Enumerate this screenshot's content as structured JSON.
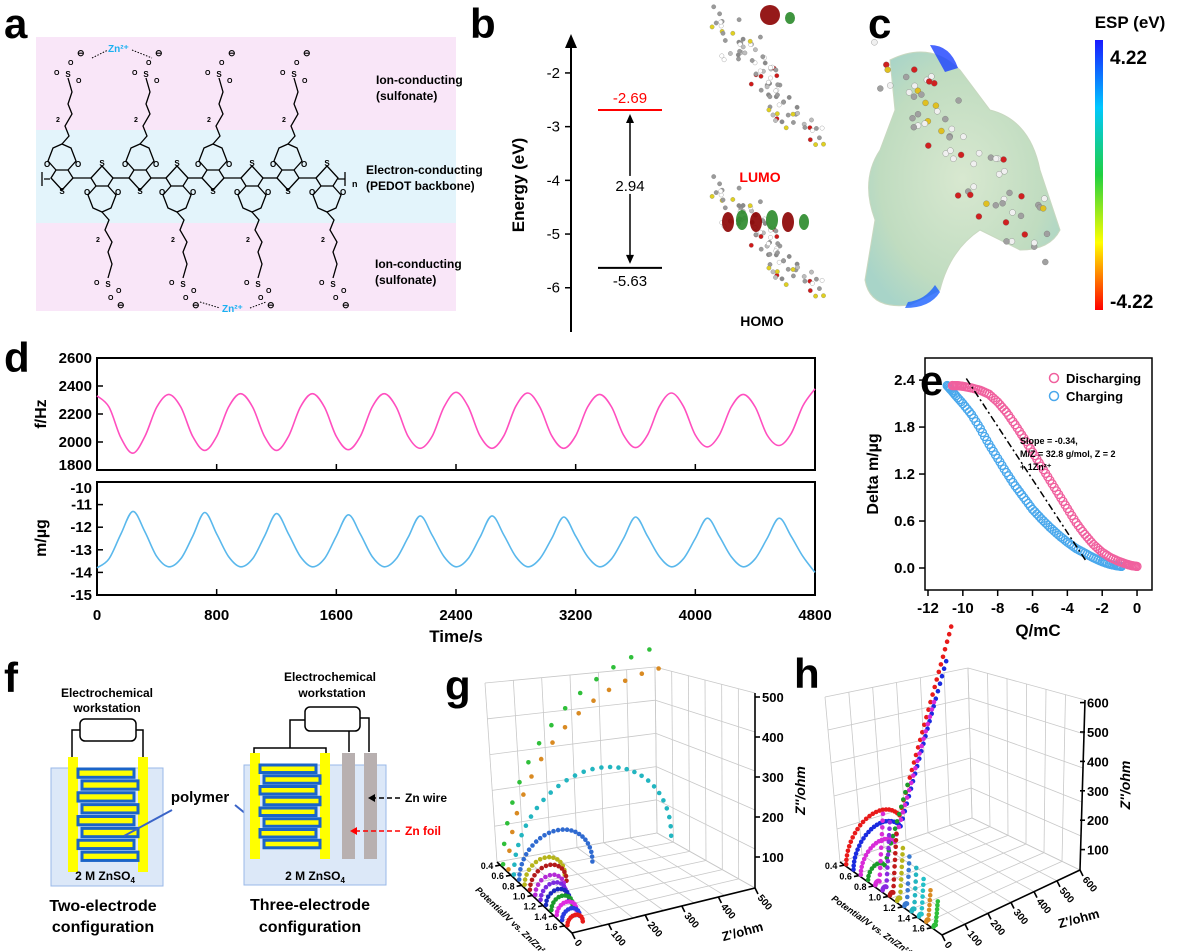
{
  "panel_labels": {
    "a": "a",
    "b": "b",
    "c": "c",
    "d": "d",
    "e": "e",
    "f": "f",
    "g": "g",
    "h": "h"
  },
  "panel_a": {
    "top_label_1": "Ion-conducting",
    "top_label_2": "(sulfonate)",
    "mid_label_1": "Electron-conducting",
    "mid_label_2": "(PEDOT backbone)",
    "bottom_label_1": "Ion-conducting",
    "bottom_label_2": "(sulfonate)",
    "zn_ion": "Zn²⁺",
    "repeat_subscript": "n",
    "chain_subscript": "2",
    "atom_S": "S",
    "atom_O": "O",
    "charge": "⊖",
    "colors": {
      "ion_band": "#f9e6f8",
      "electron_band": "#e3f4fb",
      "zn": "#1ab0f0"
    }
  },
  "panel_b": {
    "y_axis_label": "Energy (eV)",
    "ticks": [
      "-2",
      "-3",
      "-4",
      "-5",
      "-6"
    ],
    "tick_values": [
      -2,
      -3,
      -4,
      -5,
      -6
    ],
    "lumo_value": "-2.69",
    "homo_value": "-5.63",
    "gap_value": "2.94",
    "lumo_label": "LUMO",
    "homo_label": "HOMO",
    "lumo_energy": -2.69,
    "homo_energy": -5.63,
    "colors": {
      "lumo": "#ff0000",
      "homo": "#000000"
    }
  },
  "panel_c": {
    "colorbar_title": "ESP (eV)",
    "max_label": "4.22",
    "min_label": "-4.22"
  },
  "chart_data": [
    {
      "panel": "d-top",
      "type": "line",
      "ylabel": "f/Hz",
      "xlabel": "Time/s",
      "xlim": [
        0,
        4800
      ],
      "ylim": [
        1800,
        2600
      ],
      "x_ticks": [
        "0",
        "800",
        "1600",
        "2400",
        "3200",
        "4000",
        "4800"
      ],
      "y_ticks": [
        "1800",
        "2000",
        "2200",
        "2400",
        "2600"
      ],
      "color": "#ff4fbf",
      "x": [
        0,
        80,
        160,
        240,
        320,
        400,
        480,
        560,
        640,
        720,
        800,
        880,
        960,
        1040,
        1120,
        1200,
        1280,
        1360,
        1440,
        1520,
        1600,
        1680,
        1760,
        1840,
        1920,
        2000,
        2080,
        2160,
        2240,
        2320,
        2400,
        2480,
        2560,
        2640,
        2720,
        2800,
        2880,
        2960,
        3040,
        3120,
        3200,
        3280,
        3360,
        3440,
        3520,
        3600,
        3680,
        3760,
        3840,
        3920,
        4000,
        4080,
        4160,
        4240,
        4320,
        4400,
        4480,
        4560,
        4640,
        4720,
        4800
      ],
      "y": [
        2330,
        2250,
        2030,
        1920,
        2040,
        2250,
        2340,
        2250,
        2040,
        1940,
        2040,
        2250,
        2345,
        2250,
        2040,
        1940,
        2040,
        2250,
        2345,
        2250,
        2040,
        1945,
        2040,
        2250,
        2345,
        2250,
        2040,
        1955,
        2040,
        2250,
        2355,
        2255,
        2045,
        1955,
        2045,
        2255,
        2350,
        2250,
        2045,
        1955,
        2045,
        2250,
        2340,
        2250,
        2050,
        1960,
        2050,
        2255,
        2350,
        2255,
        2050,
        1965,
        2050,
        2250,
        2340,
        2250,
        2050,
        1975,
        2060,
        2260,
        2380
      ]
    },
    {
      "panel": "d-bottom",
      "type": "line",
      "ylabel": "m/µg",
      "xlabel": "Time/s",
      "xlim": [
        0,
        4800
      ],
      "ylim": [
        -15,
        -10
      ],
      "x_ticks": [
        "0",
        "800",
        "1600",
        "2400",
        "3200",
        "4000",
        "4800"
      ],
      "y_ticks": [
        "-15",
        "-14",
        "-13",
        "-12",
        "-11",
        "-10"
      ],
      "color": "#5ab8ec",
      "x": [
        0,
        80,
        160,
        240,
        320,
        400,
        480,
        560,
        640,
        720,
        800,
        880,
        960,
        1040,
        1120,
        1200,
        1280,
        1360,
        1440,
        1520,
        1600,
        1680,
        1760,
        1840,
        1920,
        2000,
        2080,
        2160,
        2240,
        2320,
        2400,
        2480,
        2560,
        2640,
        2720,
        2800,
        2880,
        2960,
        3040,
        3120,
        3200,
        3280,
        3360,
        3440,
        3520,
        3600,
        3680,
        3760,
        3840,
        3920,
        4000,
        4080,
        4160,
        4240,
        4320,
        4400,
        4480,
        4560,
        4640,
        4720,
        4800
      ],
      "y": [
        -13.8,
        -13.4,
        -12.3,
        -11.3,
        -12.2,
        -13.3,
        -13.75,
        -13.4,
        -12.4,
        -11.35,
        -12.3,
        -13.3,
        -13.75,
        -13.4,
        -12.4,
        -11.4,
        -12.3,
        -13.3,
        -13.75,
        -13.4,
        -12.4,
        -11.45,
        -12.3,
        -13.3,
        -13.75,
        -13.4,
        -12.45,
        -11.5,
        -12.35,
        -13.3,
        -13.75,
        -13.4,
        -12.45,
        -11.5,
        -12.35,
        -13.3,
        -13.75,
        -13.4,
        -12.5,
        -11.55,
        -12.4,
        -13.3,
        -13.75,
        -13.4,
        -12.5,
        -11.55,
        -12.4,
        -13.3,
        -13.75,
        -13.4,
        -12.5,
        -11.6,
        -12.4,
        -13.3,
        -13.75,
        -13.4,
        -12.5,
        -11.6,
        -12.4,
        -13.3,
        -14.0
      ]
    },
    {
      "panel": "e",
      "type": "scatter",
      "xlabel": "Q/mC",
      "ylabel": "Delta m/µg",
      "xlim": [
        -12.2,
        0.9
      ],
      "ylim": [
        -0.3,
        2.7
      ],
      "x_ticks": [
        "-12",
        "-10",
        "-8",
        "-6",
        "-4",
        "-2",
        "0"
      ],
      "x_tick_values": [
        -12,
        -10,
        -8,
        -6,
        -4,
        -2,
        0
      ],
      "y_ticks": [
        "0.0",
        "0.6",
        "1.2",
        "1.8",
        "2.4"
      ],
      "y_tick_values": [
        0,
        0.6,
        1.2,
        1.8,
        2.4
      ],
      "legend_position": "top-right",
      "series": [
        {
          "name": "Discharging",
          "color": "#f0609e",
          "x": [
            0,
            -0.3,
            -0.6,
            -1,
            -1.5,
            -2,
            -2.5,
            -3,
            -3.5,
            -4,
            -4.5,
            -5,
            -5.5,
            -6,
            -6.5,
            -7,
            -7.5,
            -8,
            -8.5,
            -9,
            -9.5,
            -10,
            -10.3,
            -10.6
          ],
          "y": [
            0.02,
            0.03,
            0.05,
            0.08,
            0.13,
            0.2,
            0.3,
            0.43,
            0.58,
            0.76,
            0.94,
            1.12,
            1.3,
            1.48,
            1.66,
            1.83,
            1.99,
            2.12,
            2.22,
            2.27,
            2.3,
            2.32,
            2.33,
            2.33
          ]
        },
        {
          "name": "Charging",
          "color": "#4aa8ec",
          "x": [
            -0.9,
            -1.2,
            -1.6,
            -2,
            -2.5,
            -3,
            -3.5,
            -4,
            -4.5,
            -5,
            -5.5,
            -6,
            -6.5,
            -7,
            -7.5,
            -8,
            -8.5,
            -9,
            -9.5,
            -10,
            -10.4,
            -10.7,
            -10.9
          ],
          "y": [
            0.02,
            0.03,
            0.05,
            0.08,
            0.13,
            0.19,
            0.25,
            0.33,
            0.42,
            0.52,
            0.63,
            0.75,
            0.9,
            1.05,
            1.22,
            1.4,
            1.58,
            1.78,
            1.96,
            2.1,
            2.2,
            2.28,
            2.33
          ]
        }
      ],
      "fit_line": {
        "x": [
          -9.8,
          -2.9
        ],
        "y": [
          2.42,
          0.08
        ],
        "slope": -0.34,
        "style": "dash-dot"
      },
      "annotation": [
        "Slope = -0.34,",
        "M/Z = 32.8 g/mol, Z = 2",
        "+ 1Zn²⁺"
      ]
    },
    {
      "panel": "g",
      "type": "scatter3d",
      "x_label": "Z'/ohm",
      "y_label": "Potential/V vs. Zn/Zn²⁺",
      "z_label": "Z''/ohm",
      "x_ticks": [
        "0",
        "100",
        "200",
        "300",
        "400",
        "500"
      ],
      "potential_ticks": [
        "0.4",
        "0.6",
        "0.8",
        "1.0",
        "1.2",
        "1.4",
        "1.6"
      ],
      "z_ticks": [
        "100",
        "200",
        "300",
        "400",
        "500"
      ],
      "xlim": [
        0,
        500
      ],
      "zlim": [
        0,
        500
      ],
      "series": [
        {
          "potential": 0.4,
          "color": "#2fbf3a",
          "semicircle_diameter_ohm": 900
        },
        {
          "potential": 0.5,
          "color": "#d98a22",
          "semicircle_diameter_ohm": 820
        },
        {
          "potential": 0.6,
          "color": "#22b5c0",
          "semicircle_diameter_ohm": 430
        },
        {
          "potential": 0.7,
          "color": "#2f6ad0",
          "semicircle_diameter_ohm": 200
        },
        {
          "potential": 0.8,
          "color": "#b6b41a",
          "semicircle_diameter_ohm": 110
        },
        {
          "potential": 0.9,
          "color": "#b31a1a",
          "semicircle_diameter_ohm": 100
        },
        {
          "potential": 1.0,
          "color": "#b42ad6",
          "semicircle_diameter_ohm": 80
        },
        {
          "potential": 1.1,
          "color": "#7a2ae0",
          "semicircle_diameter_ohm": 70
        },
        {
          "potential": 1.2,
          "color": "#1a2ac0",
          "semicircle_diameter_ohm": 64
        },
        {
          "potential": 1.3,
          "color": "#1a9a2a",
          "semicircle_diameter_ohm": 58
        },
        {
          "potential": 1.4,
          "color": "#e02ae0",
          "semicircle_diameter_ohm": 54
        },
        {
          "potential": 1.5,
          "color": "#2a3ae0",
          "semicircle_diameter_ohm": 48
        },
        {
          "potential": 1.6,
          "color": "#e81a1a",
          "semicircle_diameter_ohm": 42
        }
      ]
    },
    {
      "panel": "h",
      "type": "scatter3d",
      "x_label": "Z'/ohm",
      "y_label": "Potential/V vs. Zn/Zn²⁺",
      "z_label": "Z''/ohm",
      "x_ticks": [
        "0",
        "100",
        "200",
        "300",
        "400",
        "500",
        "600"
      ],
      "potential_ticks": [
        "0.4",
        "0.6",
        "0.8",
        "1.0",
        "1.2",
        "1.4",
        "1.6"
      ],
      "z_ticks": [
        "100",
        "200",
        "300",
        "400",
        "500",
        "600"
      ],
      "xlim": [
        0,
        600
      ],
      "zlim": [
        0,
        600
      ],
      "series": [
        {
          "potential": 0.4,
          "color": "#e81a1a",
          "semicircle_diameter_ohm": 260,
          "tail_max_z_ohm": 640
        },
        {
          "potential": 0.5,
          "color": "#1a2ae0",
          "semicircle_diameter_ohm": 230,
          "tail_max_z_ohm": 560
        },
        {
          "potential": 0.6,
          "color": "#d82ad8",
          "semicircle_diameter_ohm": 170,
          "tail_max_z_ohm": 470
        },
        {
          "potential": 0.7,
          "color": "#1a9a2a",
          "semicircle_diameter_ohm": 80,
          "tail_max_z_ohm": 260
        },
        {
          "potential": 0.8,
          "color": "#d82ad8",
          "semicircle_diameter_ohm": 20,
          "tail_max_z_ohm": 230
        },
        {
          "potential": 0.9,
          "color": "#8a2ae0",
          "semicircle_diameter_ohm": 18,
          "tail_max_z_ohm": 220
        },
        {
          "potential": 1.0,
          "color": "#c01a1a",
          "semicircle_diameter_ohm": 16,
          "tail_max_z_ohm": 200
        },
        {
          "potential": 1.1,
          "color": "#b6b41a",
          "semicircle_diameter_ohm": 14,
          "tail_max_z_ohm": 170
        },
        {
          "potential": 1.2,
          "color": "#3a7ad0",
          "semicircle_diameter_ohm": 12,
          "tail_max_z_ohm": 160
        },
        {
          "potential": 1.3,
          "color": "#22b5c0",
          "semicircle_diameter_ohm": 12,
          "tail_max_z_ohm": 140
        },
        {
          "potential": 1.4,
          "color": "#22c0c8",
          "semicircle_diameter_ohm": 12,
          "tail_max_z_ohm": 120
        },
        {
          "potential": 1.5,
          "color": "#d98a22",
          "semicircle_diameter_ohm": 10,
          "tail_max_z_ohm": 100
        },
        {
          "potential": 1.6,
          "color": "#2fbf3a",
          "semicircle_diameter_ohm": 10,
          "tail_max_z_ohm": 80
        }
      ]
    }
  ],
  "panel_f": {
    "workstation_label_1": "Electrochemical",
    "workstation_label_2": "workstation",
    "electrolyte": "2 M ZnSO",
    "electrolyte_sub": "4",
    "polymer_label": "polymer",
    "zn_wire_label": "Zn wire",
    "zn_foil_label": "Zn foil",
    "two_electrode_1": "Two-electrode",
    "two_electrode_2": "configuration",
    "three_electrode_1": "Three-electrode",
    "three_electrode_2": "configuration",
    "colors": {
      "electrolyte": "#dce8f8",
      "electrode": "#ffff00",
      "polymer": "#1a64c8",
      "zn": "#b8b0b0",
      "foil_arrow": "#ff0000"
    }
  }
}
